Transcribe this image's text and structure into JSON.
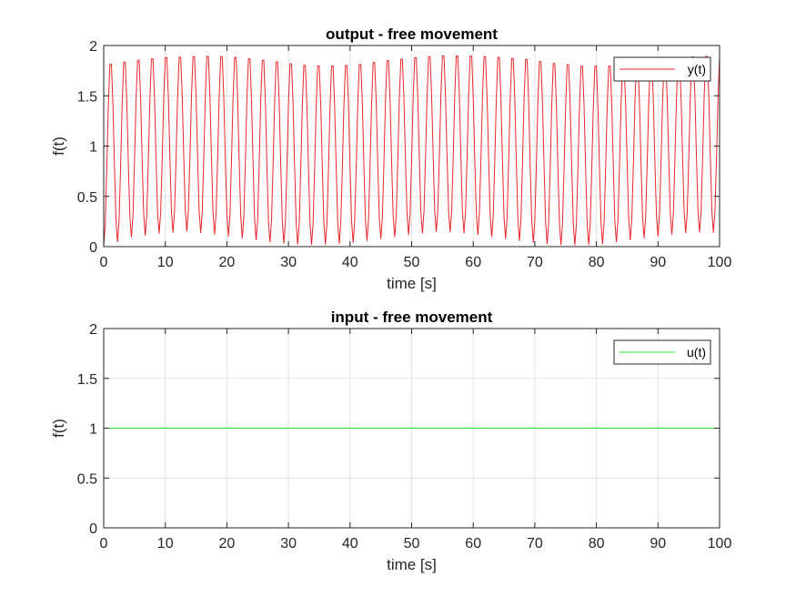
{
  "chart_data": [
    {
      "type": "line",
      "title": "output - free movement",
      "xlabel": "time [s]",
      "ylabel": "f(t)",
      "xlim": [
        0,
        100
      ],
      "ylim": [
        0,
        2
      ],
      "xticks": [
        0,
        10,
        20,
        30,
        40,
        50,
        60,
        70,
        80,
        90,
        100
      ],
      "yticks": [
        0,
        0.5,
        1,
        1.5,
        2
      ],
      "grid": true,
      "legend_position": "top-right",
      "series": [
        {
          "name": "y(t)",
          "color": "#e8262c",
          "period": 2.25,
          "peaks_approx": [
            1.86,
            1.9,
            1.93,
            1.94,
            1.95,
            1.93,
            1.9,
            1.86,
            1.85,
            1.86,
            1.9,
            1.93,
            1.95,
            1.95,
            1.94,
            1.92,
            1.88,
            1.85,
            1.85,
            1.87,
            1.91,
            1.94,
            1.95
          ],
          "troughs_approx": [
            0.0,
            0.09,
            0.13,
            0.15,
            0.12,
            0.08,
            0.04,
            0.02,
            0.02,
            0.04,
            0.08,
            0.12,
            0.15,
            0.13,
            0.09,
            0.05,
            0.02,
            0.01,
            0.03,
            0.07,
            0.11,
            0.14,
            0.14
          ]
        }
      ]
    },
    {
      "type": "line",
      "title": "input - free movement",
      "xlabel": "time [s]",
      "ylabel": "f(t)",
      "xlim": [
        0,
        100
      ],
      "ylim": [
        0,
        2
      ],
      "xticks": [
        0,
        10,
        20,
        30,
        40,
        50,
        60,
        70,
        80,
        90,
        100
      ],
      "yticks": [
        0,
        0.5,
        1,
        1.5,
        2
      ],
      "grid": true,
      "legend_position": "top-right",
      "series": [
        {
          "name": "u(t)",
          "color": "#2ee82e",
          "x": [
            0,
            100
          ],
          "y": [
            1,
            1
          ]
        }
      ]
    }
  ]
}
